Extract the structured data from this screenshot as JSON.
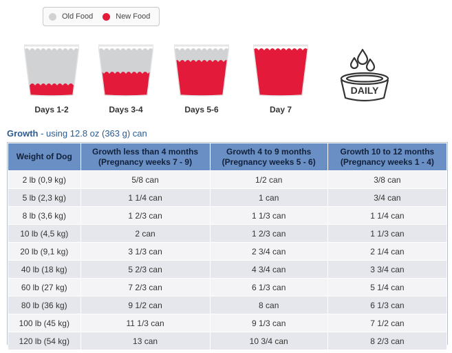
{
  "legend": {
    "old_label": "Old Food",
    "new_label": "New Food",
    "old_color": "#d1d2d3",
    "new_color": "#e41a3b"
  },
  "transition": [
    {
      "label": "Days 1-2",
      "new_fraction": 0.25
    },
    {
      "label": "Days 3-4",
      "new_fraction": 0.5
    },
    {
      "label": "Days 5-6",
      "new_fraction": 0.75
    },
    {
      "label": "Day 7",
      "new_fraction": 1.0
    }
  ],
  "daily_icon": {
    "label": "DAILY",
    "icon": "water-bowl-icon"
  },
  "section": {
    "title": "Growth",
    "subtitle": " - using 12.8 oz (363 g) can"
  },
  "table": {
    "headers": [
      {
        "line1": "Weight of Dog",
        "line2": ""
      },
      {
        "line1": "Growth less than 4 months",
        "line2": "(Pregnancy weeks 7 - 9)"
      },
      {
        "line1": "Growth 4 to 9 months",
        "line2": "(Pregnancy weeks 5 - 6)"
      },
      {
        "line1": "Growth 10 to 12 months",
        "line2": "(Pregnancy weeks 1 - 4)"
      }
    ],
    "rows": [
      [
        "2 lb (0,9 kg)",
        "5/8 can",
        "1/2 can",
        "3/8 can"
      ],
      [
        "5 lb (2,3 kg)",
        "1 1/4 can",
        "1 can",
        "3/4 can"
      ],
      [
        "8 lb (3,6 kg)",
        "1 2/3 can",
        "1 1/3 can",
        "1 1/4 can"
      ],
      [
        "10 lb (4,5 kg)",
        "2 can",
        "1 2/3 can",
        "1 1/3 can"
      ],
      [
        "20 lb (9,1 kg)",
        "3 1/3 can",
        "2 3/4 can",
        "2 1/4 can"
      ],
      [
        "40 lb (18 kg)",
        "5 2/3 can",
        "4 3/4 can",
        "3 3/4 can"
      ],
      [
        "60 lb (27 kg)",
        "7 2/3 can",
        "6 1/3 can",
        "5 1/4 can"
      ],
      [
        "80 lb (36 kg)",
        "9 1/2 can",
        "8 can",
        "6 1/3 can"
      ],
      [
        "100 lb (45 kg)",
        "11 1/3 can",
        "9 1/3 can",
        "7 1/2 can"
      ],
      [
        "120 lb (54 kg)",
        "13 can",
        "10 3/4 can",
        "8 2/3 can"
      ]
    ]
  }
}
